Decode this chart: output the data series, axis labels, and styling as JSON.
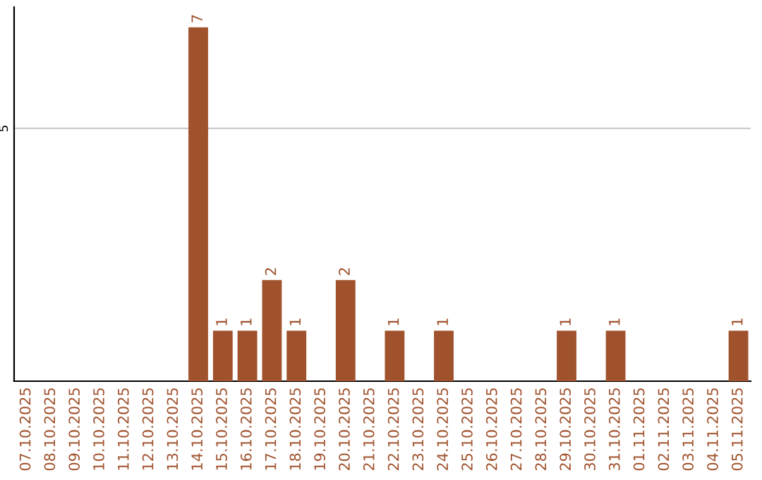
{
  "chart_data": {
    "type": "bar",
    "categories": [
      "07.10.2025",
      "08.10.2025",
      "09.10.2025",
      "10.10.2025",
      "11.10.2025",
      "12.10.2025",
      "13.10.2025",
      "14.10.2025",
      "15.10.2025",
      "16.10.2025",
      "17.10.2025",
      "18.10.2025",
      "19.10.2025",
      "20.10.2025",
      "21.10.2025",
      "22.10.2025",
      "23.10.2025",
      "24.10.2025",
      "25.10.2025",
      "26.10.2025",
      "27.10.2025",
      "28.10.2025",
      "29.10.2025",
      "30.10.2025",
      "31.10.2025",
      "01.11.2025",
      "02.11.2025",
      "03.11.2025",
      "04.11.2025",
      "05.11.2025"
    ],
    "values": [
      0,
      0,
      0,
      0,
      0,
      0,
      0,
      7,
      1,
      1,
      2,
      1,
      0,
      2,
      0,
      1,
      0,
      1,
      0,
      0,
      0,
      0,
      1,
      0,
      1,
      0,
      0,
      0,
      0,
      1
    ],
    "value_labels": [
      null,
      null,
      null,
      null,
      null,
      null,
      null,
      "7",
      "1",
      "1",
      "2",
      "1",
      null,
      "2",
      null,
      "1",
      null,
      "1",
      null,
      null,
      null,
      null,
      "1",
      null,
      "1",
      null,
      null,
      null,
      null,
      "1"
    ],
    "color": "#a0522d",
    "ylim": [
      0,
      7.4
    ],
    "yticks": [
      5
    ],
    "grid": "y"
  }
}
